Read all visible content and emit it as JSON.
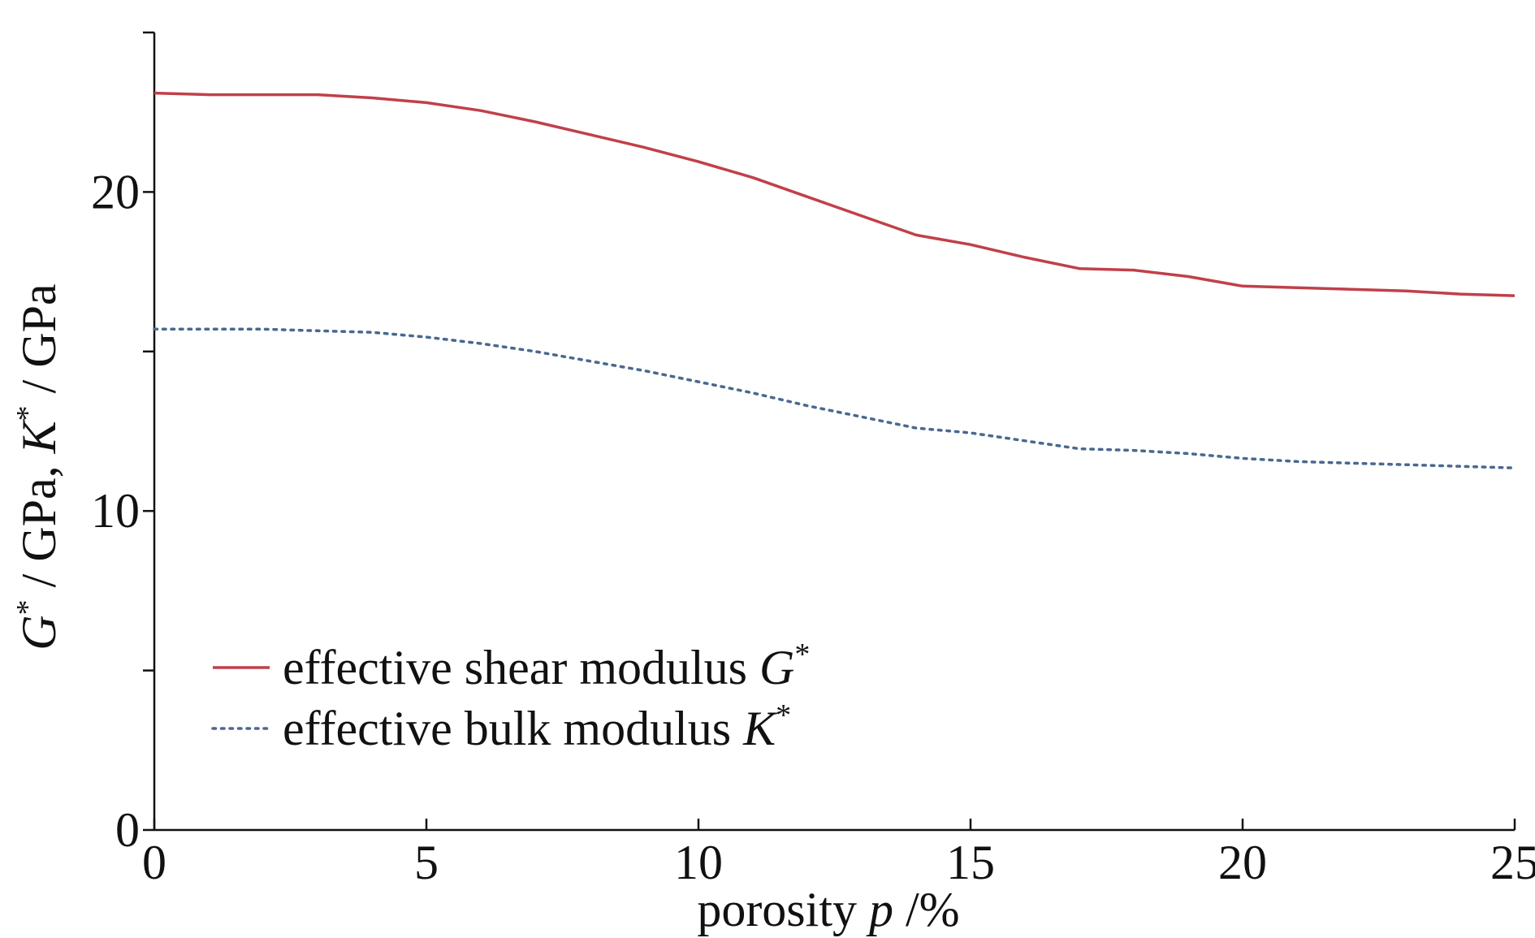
{
  "chart_data": {
    "type": "line",
    "title": "",
    "xlabel": {
      "prefix": "porosity ",
      "var": "p",
      "suffix": " /%"
    },
    "ylabel": {
      "g_var": "G",
      "sup": "*",
      "g_unit": " / GPa, ",
      "k_var": "K",
      "k_unit": " / GPa"
    },
    "xlim": [
      0,
      25
    ],
    "ylim": [
      0,
      25
    ],
    "x_ticks": [
      0,
      5,
      10,
      15,
      20,
      25
    ],
    "x_tick_labels": [
      "0",
      "5",
      "10",
      "15",
      "20",
      "25"
    ],
    "y_ticks": [
      0,
      5,
      10,
      15,
      20,
      25
    ],
    "y_tick_labels": [
      "0",
      "",
      "10",
      "",
      "20",
      ""
    ],
    "grid": false,
    "legend_position": "bottom-left",
    "series": [
      {
        "name": "effective shear modulus",
        "symbol": "G",
        "sup": "*",
        "style": "solid",
        "color": "#c0404a",
        "x": [
          0,
          1,
          2,
          3,
          4,
          5,
          6,
          7,
          8,
          9,
          10,
          11,
          12,
          13,
          14,
          15,
          16,
          17,
          18,
          19,
          20,
          21,
          22,
          23,
          24,
          25
        ],
        "y": [
          23.1,
          23.05,
          23.05,
          23.05,
          22.95,
          22.8,
          22.55,
          22.2,
          21.8,
          21.4,
          20.95,
          20.45,
          19.85,
          19.25,
          18.65,
          18.35,
          17.95,
          17.6,
          17.55,
          17.35,
          17.05,
          17.0,
          16.95,
          16.9,
          16.8,
          16.75
        ]
      },
      {
        "name": "effective bulk modulus",
        "symbol": "K",
        "sup": "*",
        "style": "dotted",
        "color": "#4a6890",
        "x": [
          0,
          1,
          2,
          3,
          4,
          5,
          6,
          7,
          8,
          9,
          10,
          11,
          12,
          13,
          14,
          15,
          16,
          17,
          18,
          19,
          20,
          21,
          22,
          23,
          24,
          25
        ],
        "y": [
          15.7,
          15.7,
          15.7,
          15.65,
          15.6,
          15.45,
          15.25,
          15.0,
          14.7,
          14.4,
          14.05,
          13.7,
          13.3,
          12.95,
          12.6,
          12.45,
          12.2,
          11.95,
          11.9,
          11.8,
          11.65,
          11.55,
          11.5,
          11.45,
          11.4,
          11.35
        ]
      }
    ]
  }
}
